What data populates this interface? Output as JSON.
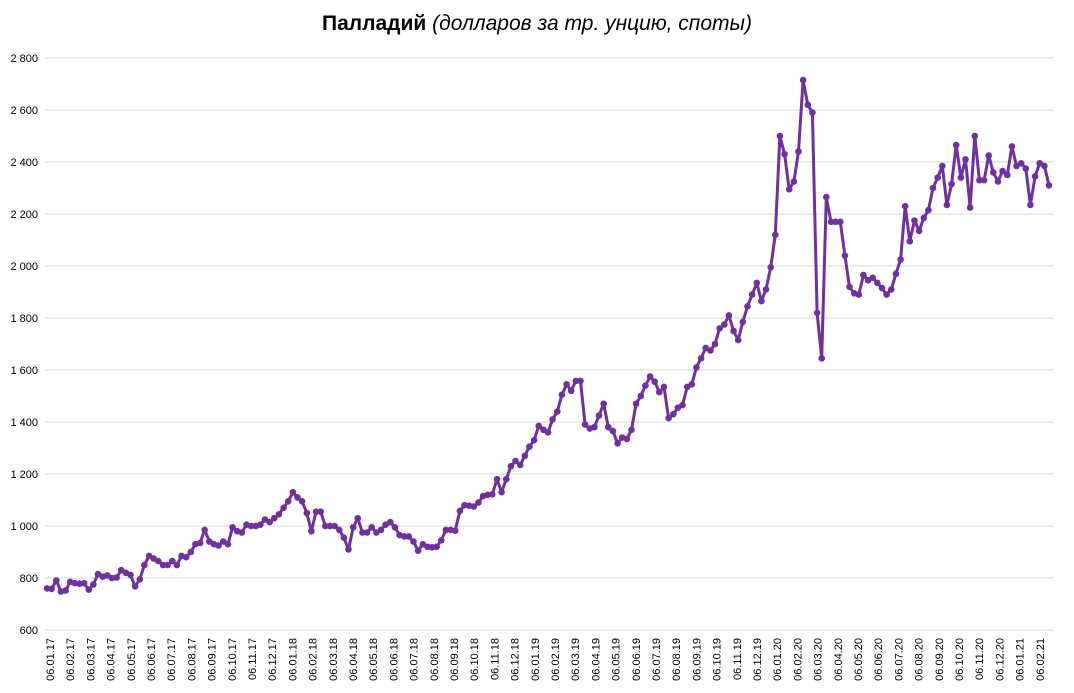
{
  "chart_data": {
    "type": "line",
    "title": "Палладий",
    "subtitle": "(долларов за тр. унцию, споты)",
    "xlabel": "",
    "ylabel": "",
    "ylim": [
      600,
      2800
    ],
    "yticks": [
      600,
      800,
      1000,
      1200,
      1400,
      1600,
      1800,
      2000,
      2200,
      2400,
      2600,
      2800
    ],
    "ytick_labels": [
      "600",
      "800",
      "1 000",
      "1 200",
      "1 400",
      "1 600",
      "1 800",
      "2 000",
      "2 200",
      "2 400",
      "2 600",
      "2 800"
    ],
    "grid": true,
    "legend": "none",
    "line_color": "#7030a0",
    "xtick_labels": [
      "06.01.17",
      "06.02.17",
      "06.03.17",
      "06.04.17",
      "06.05.17",
      "06.06.17",
      "06.07.17",
      "06.08.17",
      "06.09.17",
      "06.10.17",
      "06.11.17",
      "06.12.17",
      "06.01.18",
      "06.02.18",
      "06.03.18",
      "06.04.18",
      "06.05.18",
      "06.06.18",
      "06.07.18",
      "06.08.18",
      "06.09.18",
      "06.10.18",
      "06.11.18",
      "06.12.18",
      "06.01.19",
      "06.02.19",
      "06.03.19",
      "06.04.19",
      "06.05.19",
      "06.06.19",
      "06.07.19",
      "06.08.19",
      "06.09.19",
      "06.10.19",
      "06.11.19",
      "06.12.19",
      "06.01.20",
      "06.02.20",
      "06.03.20",
      "06.04.20",
      "06.05.20",
      "06.06.20",
      "06.07.20",
      "06.08.20",
      "06.09.20",
      "06.10.20",
      "06.11.20",
      "06.12.20",
      "06.01.21",
      "06.02.21"
    ],
    "series": [
      {
        "values": [
          760,
          758,
          790,
          748,
          752,
          785,
          780,
          778,
          780,
          755,
          775,
          815,
          805,
          810,
          800,
          802,
          830,
          820,
          812,
          768,
          795,
          850,
          885,
          875,
          865,
          850,
          850,
          865,
          850,
          885,
          880,
          900,
          930,
          935,
          985,
          940,
          930,
          925,
          940,
          930,
          995,
          980,
          975,
          1005,
          1000,
          1000,
          1005,
          1025,
          1015,
          1030,
          1045,
          1070,
          1095,
          1130,
          1110,
          1095,
          1050,
          980,
          1055,
          1055,
          1000,
          1000,
          1000,
          985,
          955,
          910,
          995,
          1030,
          975,
          975,
          995,
          975,
          985,
          1005,
          1015,
          995,
          965,
          960,
          960,
          940,
          905,
          930,
          920,
          918,
          920,
          945,
          985,
          985,
          982,
          1058,
          1080,
          1078,
          1075,
          1090,
          1115,
          1120,
          1122,
          1180,
          1130,
          1180,
          1230,
          1250,
          1235,
          1270,
          1305,
          1330,
          1385,
          1370,
          1360,
          1410,
          1440,
          1505,
          1545,
          1520,
          1558,
          1558,
          1390,
          1375,
          1380,
          1425,
          1470,
          1380,
          1365,
          1318,
          1340,
          1335,
          1370,
          1470,
          1500,
          1540,
          1575,
          1555,
          1515,
          1535,
          1415,
          1430,
          1455,
          1465,
          1535,
          1545,
          1610,
          1645,
          1685,
          1675,
          1700,
          1760,
          1775,
          1810,
          1750,
          1715,
          1785,
          1845,
          1890,
          1935,
          1865,
          1910,
          1995,
          2120,
          2500,
          2430,
          2295,
          2325,
          2440,
          2715,
          2620,
          2590,
          1820,
          1645,
          2265,
          2170,
          2170,
          2170,
          2040,
          1920,
          1895,
          1890,
          1965,
          1945,
          1955,
          1935,
          1915,
          1890,
          1910,
          1970,
          2025,
          2230,
          2095,
          2175,
          2135,
          2185,
          2215,
          2300,
          2340,
          2385,
          2235,
          2315,
          2465,
          2340,
          2410,
          2225,
          2500,
          2330,
          2330,
          2425,
          2360,
          2325,
          2365,
          2350,
          2460,
          2385,
          2395,
          2375,
          2235,
          2345,
          2395,
          2385,
          2310
        ]
      }
    ]
  }
}
